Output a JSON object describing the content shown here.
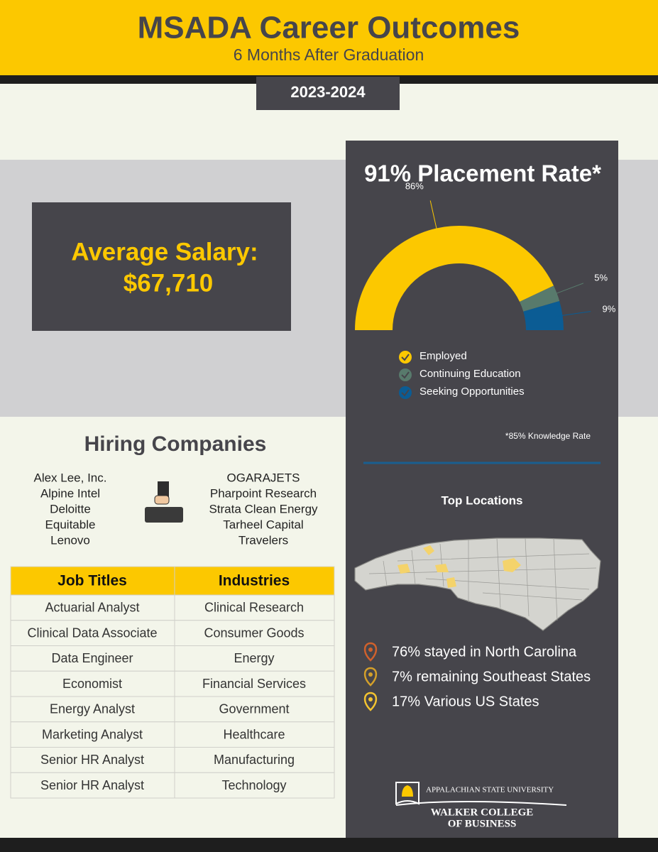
{
  "header": {
    "title": "MSADA Career Outcomes",
    "subtitle": "6 Months After Graduation",
    "year": "2023-2024"
  },
  "salary": {
    "label": "Average Salary:",
    "value": "$67,710"
  },
  "placement": {
    "title": "91% Placement Rate*",
    "chart": {
      "type": "pie",
      "categories": [
        "Employed",
        "Continuing Education",
        "Seeking Opportunities"
      ],
      "values": [
        86,
        5,
        9
      ],
      "value_labels": [
        "86%",
        "5%",
        "9%"
      ],
      "colors": [
        "#fcc800",
        "#587a6c",
        "#0b5c94"
      ]
    },
    "note": "*85% Knowledge Rate"
  },
  "locations": {
    "title": "Top Locations",
    "items": [
      "76% stayed in North Carolina",
      "7% remaining Southeast States",
      "17% Various US States"
    ]
  },
  "hiring": {
    "title": "Hiring Companies",
    "companies_left": [
      "Alex Lee, Inc.",
      "Alpine Intel",
      "Deloitte",
      "Equitable",
      "Lenovo"
    ],
    "companies_right": [
      "OGARAJETS",
      "Pharpoint Research",
      "Strata Clean Energy",
      "Tarheel Capital",
      "Travelers"
    ]
  },
  "table": {
    "headers": [
      "Job Titles",
      "Industries"
    ],
    "rows": [
      [
        "Actuarial Analyst",
        "Clinical Research"
      ],
      [
        "Clinical Data Associate",
        "Consumer Goods"
      ],
      [
        "Data Engineer",
        "Energy"
      ],
      [
        "Economist",
        "Financial Services"
      ],
      [
        "Energy Analyst",
        "Government"
      ],
      [
        "Marketing Analyst",
        "Healthcare"
      ],
      [
        "Senior HR Analyst",
        "Manufacturing"
      ],
      [
        "Senior HR Analyst",
        "Technology"
      ]
    ]
  },
  "logo": {
    "university": "APPALACHIAN STATE UNIVERSITY",
    "college_line1": "WALKER COLLEGE",
    "college_line2": "OF BUSINESS"
  }
}
